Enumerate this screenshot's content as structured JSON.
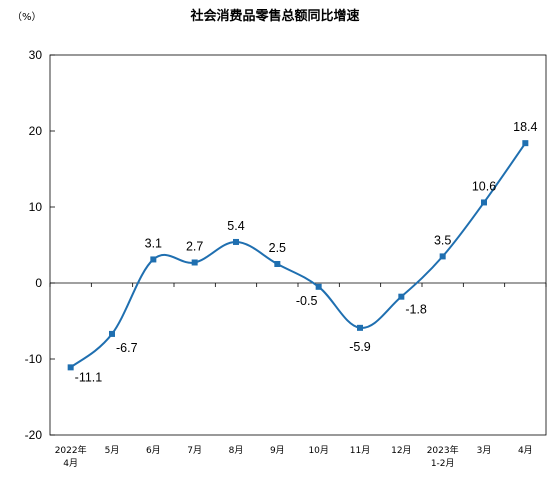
{
  "chart_data": {
    "type": "line",
    "title": "社会消费品零售总额同比增速",
    "unit_label": "（%）",
    "xlabel": "",
    "ylabel": "",
    "categories": [
      [
        "2022年",
        "4月"
      ],
      [
        "5月"
      ],
      [
        "6月"
      ],
      [
        "7月"
      ],
      [
        "8月"
      ],
      [
        "9月"
      ],
      [
        "10月"
      ],
      [
        "11月"
      ],
      [
        "12月"
      ],
      [
        "2023年",
        "1-2月"
      ],
      [
        "3月"
      ],
      [
        "4月"
      ]
    ],
    "values": [
      -11.1,
      -6.7,
      3.1,
      2.7,
      5.4,
      2.5,
      -0.5,
      -5.9,
      -1.8,
      3.5,
      10.6,
      18.4
    ],
    "data_labels": [
      "-11.1",
      "-6.7",
      "3.1",
      "2.7",
      "5.4",
      "2.5",
      "-0.5",
      "-5.9",
      "-1.8",
      "3.5",
      "10.6",
      "18.4"
    ],
    "ylim": [
      -20,
      30
    ],
    "yticks": [
      -20,
      -10,
      0,
      10,
      20,
      30
    ],
    "ytick_labels": [
      "-20",
      "-10",
      "0",
      "10",
      "20",
      "30"
    ],
    "grid": false,
    "legend": "none",
    "colors": {
      "line": "#1f6fb0",
      "marker": "#1f6fb0",
      "axis": "#000000",
      "frame": "#000000"
    }
  }
}
